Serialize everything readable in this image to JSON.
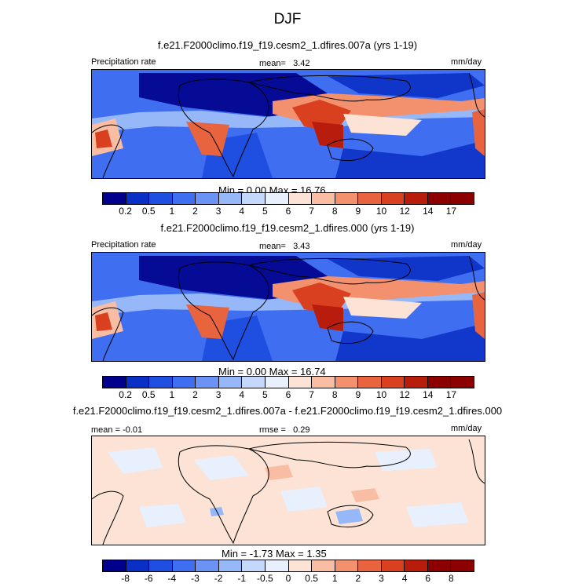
{
  "season": "DJF",
  "chart_data": [
    {
      "type": "heatmap",
      "title": "f.e21.F2000climo.f19_f19.cesm2_1.dfires.007a (yrs 1-19)",
      "variable": "Precipitation rate",
      "units": "mm/day",
      "stat_label": "mean=",
      "stat_value": "3.42",
      "minmax_text": "Min =   0.00 Max =  16.76",
      "min": 0.0,
      "max": 16.76,
      "levels": [
        "0.2",
        "0.5",
        "1",
        "2",
        "3",
        "4",
        "5",
        "6",
        "7",
        "8",
        "9",
        "10",
        "12",
        "14",
        "17"
      ]
    },
    {
      "type": "heatmap",
      "title": "f.e21.F2000climo.f19_f19.cesm2_1.dfires.000 (yrs 1-19)",
      "variable": "Precipitation rate",
      "units": "mm/day",
      "stat_label": "mean=",
      "stat_value": "3.43",
      "minmax_text": "Min =   0.00 Max =  16.74",
      "min": 0.0,
      "max": 16.74,
      "levels": [
        "0.2",
        "0.5",
        "1",
        "2",
        "3",
        "4",
        "5",
        "6",
        "7",
        "8",
        "9",
        "10",
        "12",
        "14",
        "17"
      ]
    },
    {
      "type": "heatmap",
      "title": "f.e21.F2000climo.f19_f19.cesm2_1.dfires.007a - f.e21.F2000climo.f19_f19.cesm2_1.dfires.000",
      "units": "mm/day",
      "mean_label": "mean =",
      "mean_value": "-0.01",
      "rmse_label": "rmse =",
      "rmse_value": "0.29",
      "minmax_text": "Min =  -1.73 Max =   1.35",
      "min": -1.73,
      "max": 1.35,
      "levels": [
        "-8",
        "-6",
        "-4",
        "-3",
        "-2",
        "-1",
        "-0.5",
        "0",
        "0.5",
        "1",
        "2",
        "3",
        "4",
        "6",
        "8"
      ]
    }
  ],
  "colors": {
    "precip_palette": [
      "#00008c",
      "#0a2fc4",
      "#1f4fe0",
      "#3f6ff0",
      "#6a93f5",
      "#97b8f8",
      "#c4d8fb",
      "#e8f0fd",
      "#fce3d5",
      "#f9bda3",
      "#f3906d",
      "#e8643f",
      "#d9401f",
      "#b81c0c",
      "#8c0000"
    ],
    "diff_palette": [
      "#00008c",
      "#0a2fc4",
      "#1f4fe0",
      "#3f6ff0",
      "#6a93f5",
      "#97b8f8",
      "#c4d8fb",
      "#e8f0fd",
      "#fce3d5",
      "#f9bda3",
      "#f3906d",
      "#e8643f",
      "#d9401f",
      "#b81c0c",
      "#8c0000"
    ]
  }
}
